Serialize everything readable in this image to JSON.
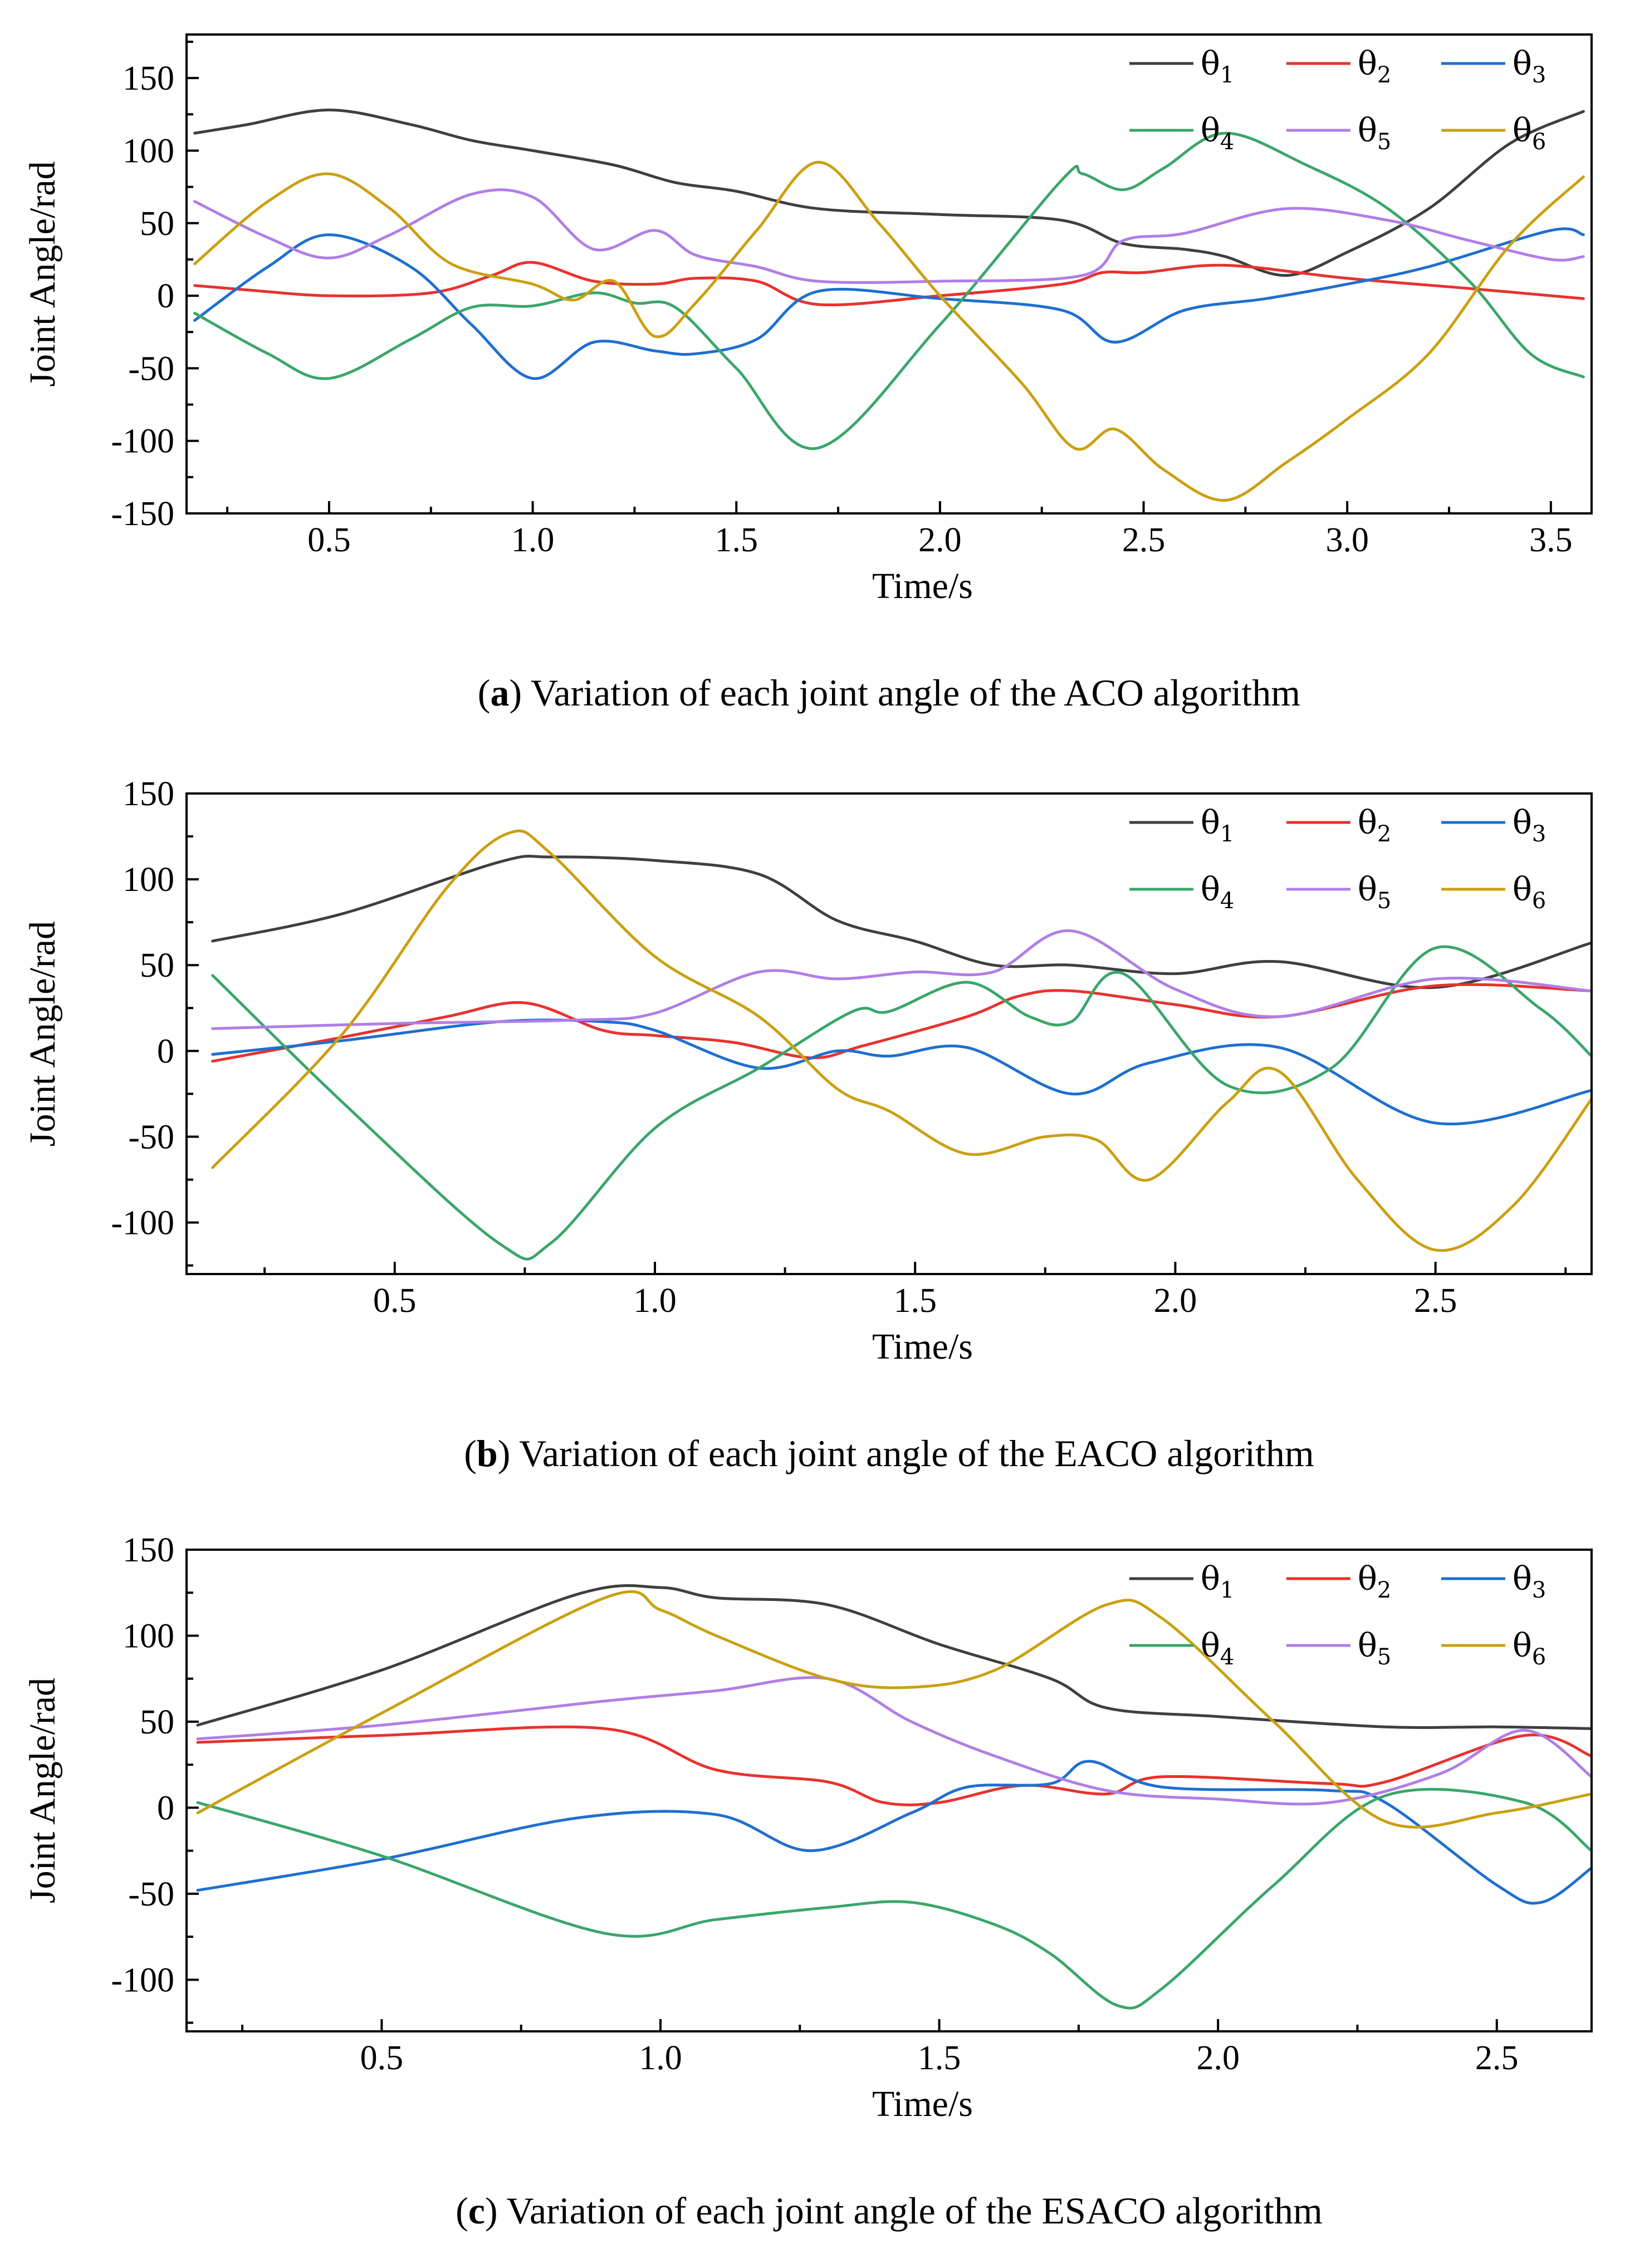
{
  "colors": {
    "theta1": "#3f3f3f",
    "theta2": "#e8322d",
    "theta3": "#1e6fd0",
    "theta4": "#3aa66a",
    "theta5": "#b07ee6",
    "theta6": "#caa010"
  },
  "chart_data": [
    {
      "type": "line",
      "panel": "a",
      "caption": {
        "letter": "a",
        "text": " Variation of each joint angle of the ACO algorithm"
      },
      "xlabel": "Time/s",
      "ylabel": "Joint Angle/rad",
      "xlim": [
        0.15,
        3.6
      ],
      "ylim": [
        -150,
        180
      ],
      "xticks": [
        0.5,
        1.0,
        1.5,
        2.0,
        2.5,
        3.0,
        3.5
      ],
      "xtick_labels": [
        "0.5",
        "1.0",
        "1.5",
        "2.0",
        "2.5",
        "3.0",
        "3.5"
      ],
      "yticks": [
        -150,
        -100,
        -50,
        0,
        50,
        100,
        150
      ],
      "ytick_labels": [
        "-150",
        "-100",
        "-50",
        "0",
        "50",
        "100",
        "150"
      ],
      "legend": {
        "placement": "top-right",
        "rows": [
          [
            "θ1",
            "θ2",
            "θ3"
          ],
          [
            "θ4",
            "θ5",
            "θ6"
          ]
        ]
      },
      "series": [
        {
          "name": "θ1",
          "symbol": "θ",
          "sub": "1",
          "color_key": "theta1",
          "x": [
            0.17,
            0.3,
            0.5,
            0.7,
            0.85,
            1.0,
            1.2,
            1.35,
            1.5,
            1.7,
            2.0,
            2.3,
            2.45,
            2.6,
            2.7,
            2.85,
            3.0,
            3.2,
            3.4,
            3.58
          ],
          "y": [
            112,
            118,
            128,
            118,
            107,
            100,
            90,
            78,
            72,
            60,
            56,
            52,
            36,
            32,
            27,
            14,
            30,
            60,
            105,
            127
          ]
        },
        {
          "name": "θ2",
          "symbol": "θ",
          "sub": "2",
          "color_key": "theta2",
          "x": [
            0.17,
            0.3,
            0.5,
            0.75,
            0.9,
            1.0,
            1.15,
            1.3,
            1.4,
            1.55,
            1.7,
            2.0,
            2.3,
            2.4,
            2.5,
            2.7,
            3.0,
            3.3,
            3.58
          ],
          "y": [
            7,
            4,
            0,
            2,
            14,
            23,
            10,
            8,
            12,
            10,
            -6,
            0,
            8,
            16,
            16,
            21,
            12,
            5,
            -2
          ]
        },
        {
          "name": "θ3",
          "symbol": "θ",
          "sub": "3",
          "color_key": "theta3",
          "x": [
            0.17,
            0.35,
            0.5,
            0.7,
            0.85,
            1.0,
            1.15,
            1.3,
            1.4,
            1.55,
            1.7,
            2.0,
            2.3,
            2.43,
            2.6,
            2.8,
            3.0,
            3.2,
            3.5,
            3.58
          ],
          "y": [
            -17,
            20,
            42,
            20,
            -20,
            -57,
            -32,
            -38,
            -40,
            -30,
            3,
            -2,
            -10,
            -32,
            -10,
            -2,
            8,
            20,
            45,
            42
          ]
        },
        {
          "name": "θ4",
          "symbol": "θ",
          "sub": "4",
          "color_key": "theta4",
          "x": [
            0.17,
            0.35,
            0.5,
            0.7,
            0.85,
            1.0,
            1.15,
            1.25,
            1.35,
            1.5,
            1.7,
            2.0,
            2.3,
            2.35,
            2.45,
            2.55,
            2.7,
            2.9,
            3.1,
            3.3,
            3.45,
            3.58
          ],
          "y": [
            -12,
            -40,
            -57,
            -30,
            -8,
            -7,
            2,
            -5,
            -8,
            -50,
            -105,
            -20,
            80,
            84,
            73,
            88,
            112,
            90,
            60,
            10,
            -40,
            -56
          ]
        },
        {
          "name": "θ5",
          "symbol": "θ",
          "sub": "5",
          "color_key": "theta5",
          "x": [
            0.17,
            0.35,
            0.5,
            0.65,
            0.85,
            1.0,
            1.15,
            1.3,
            1.4,
            1.55,
            1.7,
            2.0,
            2.35,
            2.45,
            2.6,
            2.85,
            3.1,
            3.3,
            3.5,
            3.58
          ],
          "y": [
            65,
            40,
            26,
            42,
            70,
            68,
            32,
            45,
            28,
            20,
            10,
            10,
            14,
            38,
            43,
            60,
            52,
            38,
            25,
            27
          ]
        },
        {
          "name": "θ6",
          "symbol": "θ",
          "sub": "6",
          "color_key": "theta6",
          "x": [
            0.17,
            0.35,
            0.5,
            0.65,
            0.8,
            1.0,
            1.1,
            1.2,
            1.3,
            1.4,
            1.55,
            1.7,
            1.85,
            2.0,
            2.2,
            2.33,
            2.43,
            2.55,
            2.7,
            2.85,
            3.0,
            3.2,
            3.4,
            3.58
          ],
          "y": [
            22,
            65,
            84,
            60,
            22,
            8,
            -3,
            10,
            -28,
            -5,
            45,
            92,
            50,
            0,
            -60,
            -105,
            -92,
            -120,
            -141,
            -115,
            -85,
            -40,
            35,
            82
          ]
        }
      ]
    },
    {
      "type": "line",
      "panel": "b",
      "caption": {
        "letter": "b",
        "text": " Variation of each joint angle of the EACO algorithm"
      },
      "xlabel": "Time/s",
      "ylabel": "Joint Angle/rad",
      "xlim": [
        0.1,
        2.8
      ],
      "ylim": [
        -130,
        150
      ],
      "xticks": [
        0.5,
        1.0,
        1.5,
        2.0,
        2.5
      ],
      "xtick_labels": [
        "0.5",
        "1.0",
        "1.5",
        "2.0",
        "2.5"
      ],
      "yticks": [
        -100,
        -50,
        0,
        50,
        100,
        150
      ],
      "ytick_labels": [
        "-100",
        "-50",
        "0",
        "50",
        "100",
        "150"
      ],
      "legend": {
        "placement": "top-right",
        "rows": [
          [
            "θ1",
            "θ2",
            "θ3"
          ],
          [
            "θ4",
            "θ5",
            "θ6"
          ]
        ]
      },
      "series": [
        {
          "name": "θ1",
          "symbol": "θ",
          "sub": "1",
          "color_key": "theta1",
          "x": [
            0.15,
            0.4,
            0.7,
            0.8,
            1.0,
            1.2,
            1.35,
            1.5,
            1.65,
            1.8,
            2.0,
            2.2,
            2.5,
            2.8
          ],
          "y": [
            64,
            80,
            110,
            113,
            111,
            103,
            76,
            64,
            50,
            50,
            45,
            52,
            37,
            63
          ]
        },
        {
          "name": "θ2",
          "symbol": "θ",
          "sub": "2",
          "color_key": "theta2",
          "x": [
            0.15,
            0.4,
            0.6,
            0.75,
            0.9,
            1.0,
            1.15,
            1.3,
            1.4,
            1.6,
            1.7,
            1.8,
            2.0,
            2.2,
            2.5,
            2.8
          ],
          "y": [
            -6,
            8,
            20,
            28,
            12,
            9,
            5,
            -4,
            3,
            20,
            32,
            35,
            27,
            20,
            38,
            35
          ]
        },
        {
          "name": "θ3",
          "symbol": "θ",
          "sub": "3",
          "color_key": "theta3",
          "x": [
            0.15,
            0.4,
            0.7,
            0.9,
            1.0,
            1.2,
            1.35,
            1.45,
            1.6,
            1.8,
            1.95,
            2.2,
            2.5,
            2.8
          ],
          "y": [
            -2,
            6,
            17,
            17,
            12,
            -10,
            0,
            -3,
            2,
            -25,
            -7,
            2,
            -42,
            -23
          ]
        },
        {
          "name": "θ4",
          "symbol": "θ",
          "sub": "4",
          "color_key": "theta4",
          "x": [
            0.15,
            0.4,
            0.7,
            0.8,
            1.0,
            1.2,
            1.38,
            1.45,
            1.6,
            1.72,
            1.8,
            1.9,
            2.1,
            2.3,
            2.5,
            2.7,
            2.8
          ],
          "y": [
            44,
            -30,
            -112,
            -112,
            -45,
            -10,
            23,
            23,
            40,
            20,
            17,
            45,
            -20,
            -10,
            60,
            25,
            -3
          ]
        },
        {
          "name": "θ5",
          "symbol": "θ",
          "sub": "5",
          "color_key": "theta5",
          "x": [
            0.15,
            0.5,
            0.85,
            1.0,
            1.2,
            1.35,
            1.5,
            1.65,
            1.8,
            2.0,
            2.2,
            2.5,
            2.8
          ],
          "y": [
            13,
            16,
            18,
            22,
            46,
            42,
            46,
            46,
            70,
            36,
            20,
            42,
            35
          ]
        },
        {
          "name": "θ6",
          "symbol": "θ",
          "sub": "6",
          "color_key": "theta6",
          "x": [
            0.15,
            0.4,
            0.6,
            0.72,
            0.8,
            1.0,
            1.2,
            1.35,
            1.45,
            1.6,
            1.75,
            1.85,
            1.95,
            2.1,
            2.2,
            2.35,
            2.5,
            2.65,
            2.8
          ],
          "y": [
            -68,
            10,
            95,
            127,
            115,
            55,
            20,
            -22,
            -35,
            -60,
            -50,
            -52,
            -75,
            -30,
            -12,
            -75,
            -116,
            -90,
            -28
          ]
        }
      ]
    },
    {
      "type": "line",
      "panel": "c",
      "caption": {
        "letter": "c",
        "text": " Variation of each joint angle of the ESACO algorithm"
      },
      "xlabel": "Time/s",
      "ylabel": "Joint Angle/rad",
      "xlim": [
        0.15,
        2.67
      ],
      "ylim": [
        -130,
        150
      ],
      "xticks": [
        0.5,
        1.0,
        1.5,
        2.0,
        2.5
      ],
      "xtick_labels": [
        "0.5",
        "1.0",
        "1.5",
        "2.0",
        "2.5"
      ],
      "yticks": [
        -100,
        -50,
        0,
        50,
        100,
        150
      ],
      "ytick_labels": [
        "-100",
        "-50",
        "0",
        "50",
        "100",
        "150"
      ],
      "legend": {
        "placement": "top-right",
        "rows": [
          [
            "θ1",
            "θ2",
            "θ3"
          ],
          [
            "θ4",
            "θ5",
            "θ6"
          ]
        ]
      },
      "series": [
        {
          "name": "θ1",
          "symbol": "θ",
          "sub": "1",
          "color_key": "theta1",
          "x": [
            0.17,
            0.5,
            0.85,
            1.0,
            1.1,
            1.3,
            1.5,
            1.7,
            1.8,
            2.0,
            2.3,
            2.5,
            2.67
          ],
          "y": [
            48,
            80,
            124,
            128,
            122,
            118,
            95,
            75,
            58,
            53,
            47,
            47,
            46
          ]
        },
        {
          "name": "θ2",
          "symbol": "θ",
          "sub": "2",
          "color_key": "theta2",
          "x": [
            0.17,
            0.5,
            0.9,
            1.1,
            1.3,
            1.4,
            1.5,
            1.65,
            1.8,
            1.9,
            2.2,
            2.3,
            2.55,
            2.67
          ],
          "y": [
            38,
            42,
            46,
            22,
            15,
            3,
            3,
            13,
            8,
            18,
            14,
            15,
            42,
            30
          ]
        },
        {
          "name": "θ3",
          "symbol": "θ",
          "sub": "3",
          "color_key": "theta3",
          "x": [
            0.17,
            0.5,
            0.85,
            1.1,
            1.27,
            1.45,
            1.55,
            1.7,
            1.77,
            1.9,
            2.2,
            2.3,
            2.5,
            2.58,
            2.67
          ],
          "y": [
            -48,
            -30,
            -6,
            -4,
            -25,
            -3,
            12,
            14,
            27,
            12,
            10,
            3,
            -45,
            -55,
            -35
          ]
        },
        {
          "name": "θ4",
          "symbol": "θ",
          "sub": "4",
          "color_key": "theta4",
          "x": [
            0.17,
            0.5,
            0.9,
            1.1,
            1.3,
            1.45,
            1.6,
            1.7,
            1.82,
            1.9,
            2.1,
            2.3,
            2.55,
            2.67
          ],
          "y": [
            3,
            -28,
            -73,
            -65,
            -58,
            -55,
            -68,
            -85,
            -115,
            -105,
            -45,
            7,
            3,
            -25
          ]
        },
        {
          "name": "θ5",
          "symbol": "θ",
          "sub": "5",
          "color_key": "theta5",
          "x": [
            0.17,
            0.5,
            0.9,
            1.1,
            1.3,
            1.45,
            1.6,
            1.8,
            2.0,
            2.2,
            2.4,
            2.55,
            2.67
          ],
          "y": [
            40,
            48,
            62,
            68,
            75,
            50,
            30,
            10,
            5,
            3,
            20,
            45,
            18
          ]
        },
        {
          "name": "θ6",
          "symbol": "θ",
          "sub": "6",
          "color_key": "theta6",
          "x": [
            0.17,
            0.5,
            0.9,
            1.0,
            1.1,
            1.3,
            1.45,
            1.6,
            1.8,
            1.9,
            2.1,
            2.3,
            2.5,
            2.67
          ],
          "y": [
            -3,
            55,
            122,
            115,
            100,
            75,
            70,
            80,
            118,
            110,
            50,
            -8,
            -3,
            8
          ]
        }
      ]
    }
  ]
}
